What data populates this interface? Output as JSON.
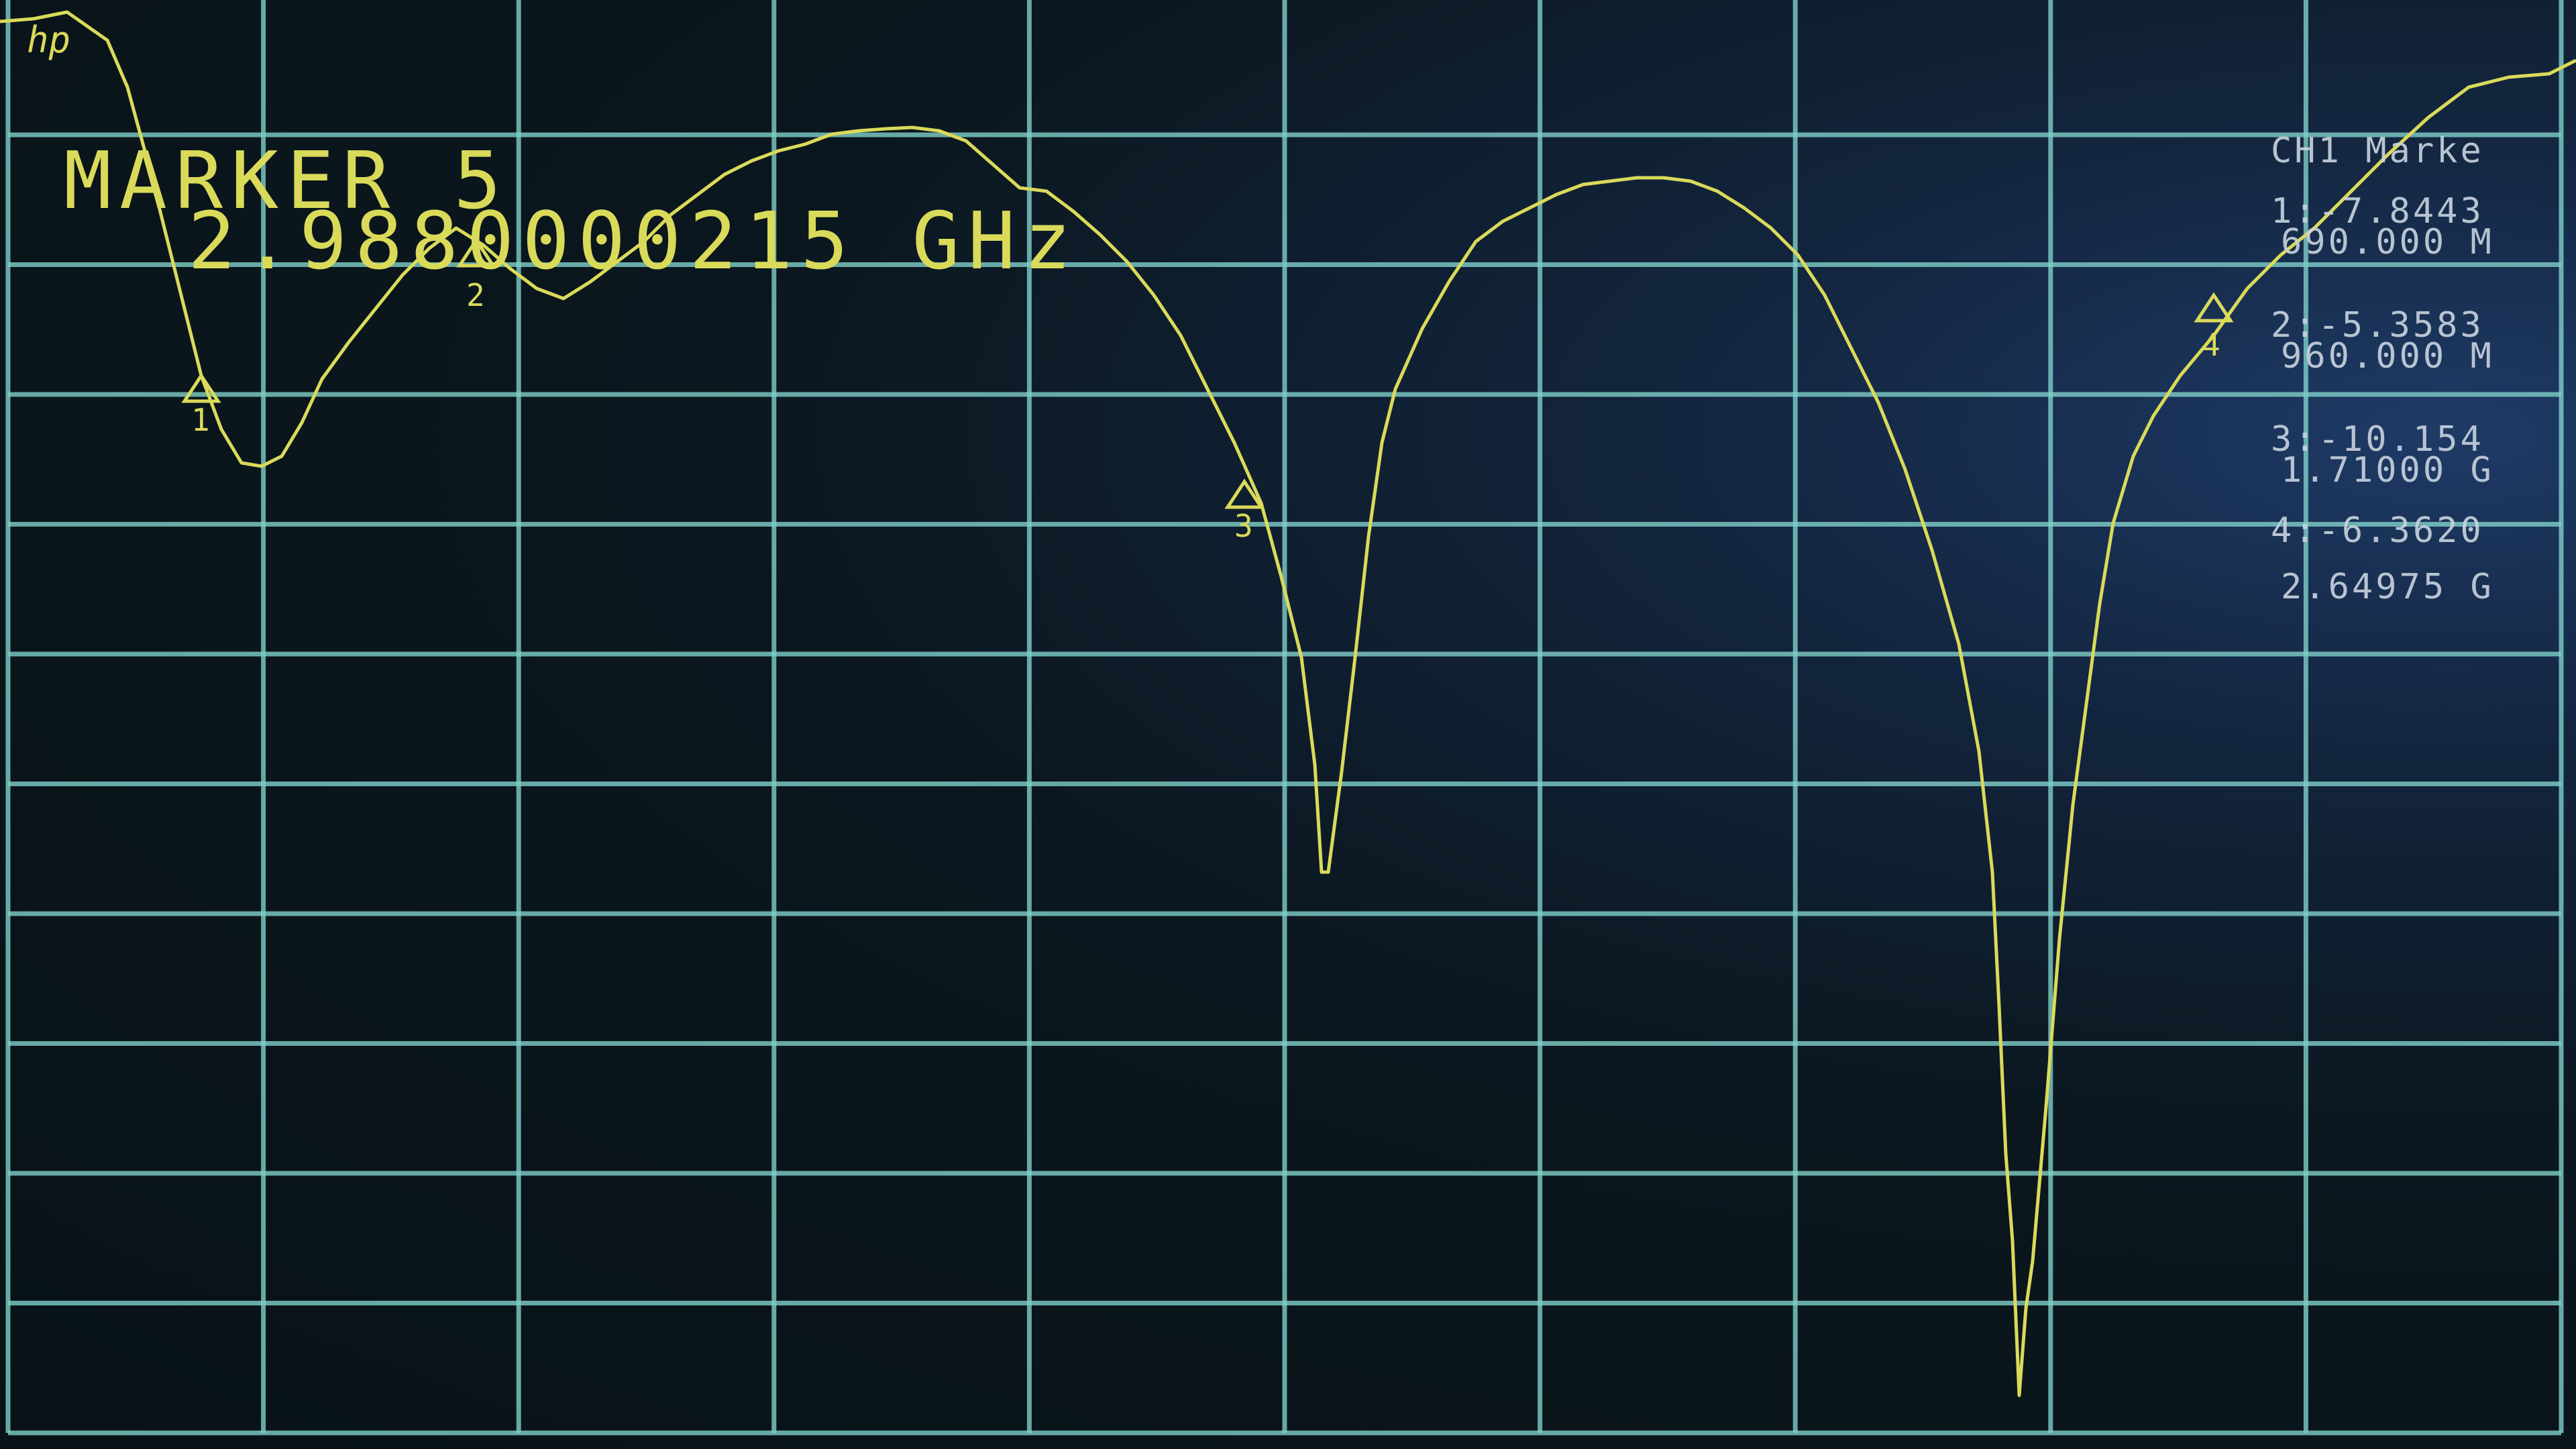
{
  "screen_label": "hp",
  "active_marker": {
    "title": "MARKER 5",
    "frequency": "2.9880000215 GHz"
  },
  "marker_panel": {
    "header": "CH1 Marke",
    "rows": [
      {
        "line1": "1:-7.8443",
        "line2": "690.000 M"
      },
      {
        "line1": "2:-5.3583",
        "line2": "960.000 M"
      },
      {
        "line1": "3:-10.154",
        "line2": "1.71000 G"
      },
      {
        "line1": "4:-6.3620",
        "line2": "2.64975 G"
      }
    ]
  },
  "markers": [
    {
      "id": "1",
      "label": "1"
    },
    {
      "id": "2",
      "label": "2"
    },
    {
      "id": "3",
      "label": "3"
    },
    {
      "id": "4",
      "label": "4"
    }
  ],
  "colors": {
    "trace": "#dada5a",
    "grid": "#7fcfc9",
    "panel_text": "#c9d4df",
    "background": "#0a1418"
  }
}
